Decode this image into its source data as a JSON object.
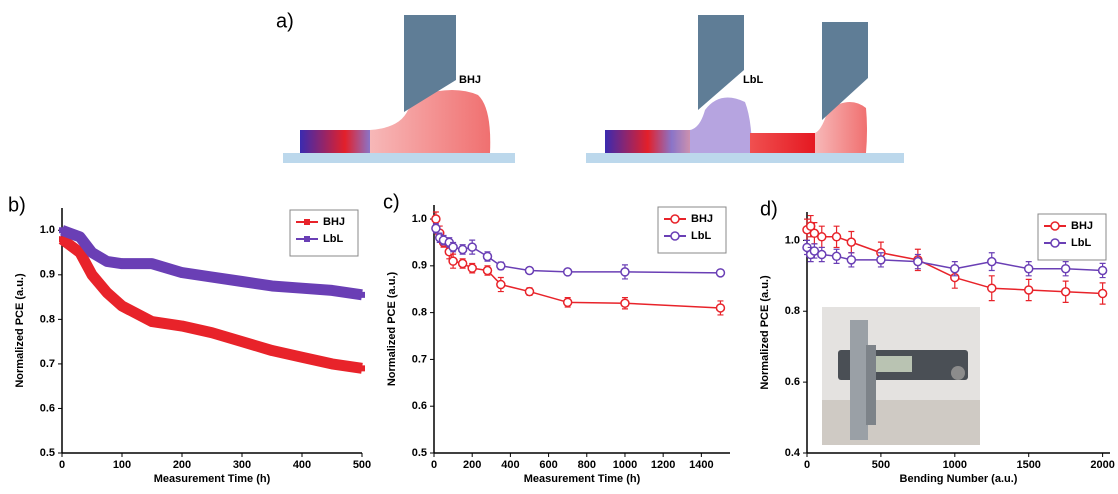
{
  "schematic": {
    "panel_label": "a)",
    "labels": [
      "BHJ",
      "LbL"
    ]
  },
  "chart_data": [
    {
      "type": "line",
      "panel_label": "b)",
      "marker": "square",
      "xlabel": "Measurement Time (h)",
      "ylabel": "Normalized PCE (a.u.)",
      "xlim": [
        0,
        500
      ],
      "ylim": [
        0.5,
        1.05
      ],
      "xticks": [
        0,
        100,
        200,
        300,
        400,
        500
      ],
      "yticks": [
        0.5,
        0.6,
        0.7,
        0.8,
        0.9,
        {
          "value": 1,
          "label": "1.0"
        }
      ],
      "legend": "upper right",
      "x": [
        0,
        10,
        30,
        50,
        75,
        100,
        150,
        200,
        250,
        300,
        350,
        400,
        450,
        500
      ],
      "series": [
        {
          "name": "BHJ",
          "color": "#e8232a",
          "values": [
            0.98,
            0.97,
            0.95,
            0.9,
            0.86,
            0.83,
            0.795,
            0.785,
            0.77,
            0.75,
            0.73,
            0.715,
            0.7,
            0.69
          ]
        },
        {
          "name": "LbL",
          "color": "#6a3fb5",
          "values": [
            1.0,
            0.995,
            0.985,
            0.95,
            0.93,
            0.925,
            0.925,
            0.905,
            0.895,
            0.885,
            0.875,
            0.87,
            0.865,
            0.855
          ]
        }
      ]
    },
    {
      "type": "line",
      "panel_label": "c)",
      "marker": "circle",
      "xlabel": "Measurement Time (h)",
      "ylabel": "Normalized PCE (a.u.)",
      "xlim": [
        0,
        1550
      ],
      "ylim": [
        0.5,
        1.03
      ],
      "xticks": [
        0,
        200,
        400,
        600,
        800,
        1000,
        1200,
        1400
      ],
      "yticks": [
        0.5,
        0.6,
        0.7,
        0.8,
        0.9,
        {
          "value": 1,
          "label": "1.0"
        }
      ],
      "legend": "upper right",
      "x": [
        10,
        30,
        50,
        80,
        100,
        150,
        200,
        280,
        350,
        500,
        700,
        1000,
        1500
      ],
      "series": [
        {
          "name": "BHJ",
          "color": "#e8232a",
          "values": [
            1.0,
            0.97,
            0.95,
            0.93,
            0.91,
            0.905,
            0.895,
            0.89,
            0.86,
            0.845,
            0.822,
            0.82,
            0.81
          ],
          "errors": [
            0.015,
            0.015,
            0.01,
            0.015,
            0.015,
            0.01,
            0.01,
            0.01,
            0.015,
            0.008,
            0.01,
            0.012,
            0.015
          ]
        },
        {
          "name": "LbL",
          "color": "#6a3fb5",
          "values": [
            0.98,
            0.96,
            0.955,
            0.95,
            0.94,
            0.935,
            0.94,
            0.92,
            0.9,
            0.89,
            0.887,
            0.887,
            0.885
          ],
          "errors": [
            0.01,
            0.01,
            0.01,
            0.01,
            0.01,
            0.01,
            0.015,
            0.01,
            0.008,
            0.005,
            0.006,
            0.015,
            0.006
          ]
        }
      ]
    },
    {
      "type": "line",
      "panel_label": "d)",
      "marker": "circle",
      "xlabel": "Bending Number (a.u.)",
      "ylabel": "Normalized PCE (a.u.)",
      "xlim": [
        0,
        2050
      ],
      "ylim": [
        0.4,
        1.08
      ],
      "xticks": [
        0,
        500,
        1000,
        1500,
        2000
      ],
      "yticks": [
        0.4,
        0.6,
        0.8,
        {
          "value": 1,
          "label": "1.0"
        }
      ],
      "legend": "upper right",
      "x": [
        0,
        25,
        50,
        100,
        200,
        300,
        500,
        750,
        1000,
        1250,
        1500,
        1750,
        2000
      ],
      "series": [
        {
          "name": "BHJ",
          "color": "#e8232a",
          "values": [
            1.03,
            1.04,
            1.02,
            1.01,
            1.01,
            0.995,
            0.965,
            0.945,
            0.895,
            0.865,
            0.86,
            0.855,
            0.85
          ],
          "errors": [
            0.03,
            0.03,
            0.03,
            0.03,
            0.03,
            0.03,
            0.03,
            0.03,
            0.03,
            0.035,
            0.03,
            0.03,
            0.03
          ]
        },
        {
          "name": "LbL",
          "color": "#6a3fb5",
          "values": [
            0.98,
            0.96,
            0.97,
            0.96,
            0.955,
            0.945,
            0.945,
            0.94,
            0.92,
            0.94,
            0.92,
            0.92,
            0.915
          ],
          "errors": [
            0.02,
            0.02,
            0.02,
            0.02,
            0.02,
            0.02,
            0.02,
            0.02,
            0.02,
            0.025,
            0.02,
            0.02,
            0.02
          ]
        }
      ]
    }
  ]
}
